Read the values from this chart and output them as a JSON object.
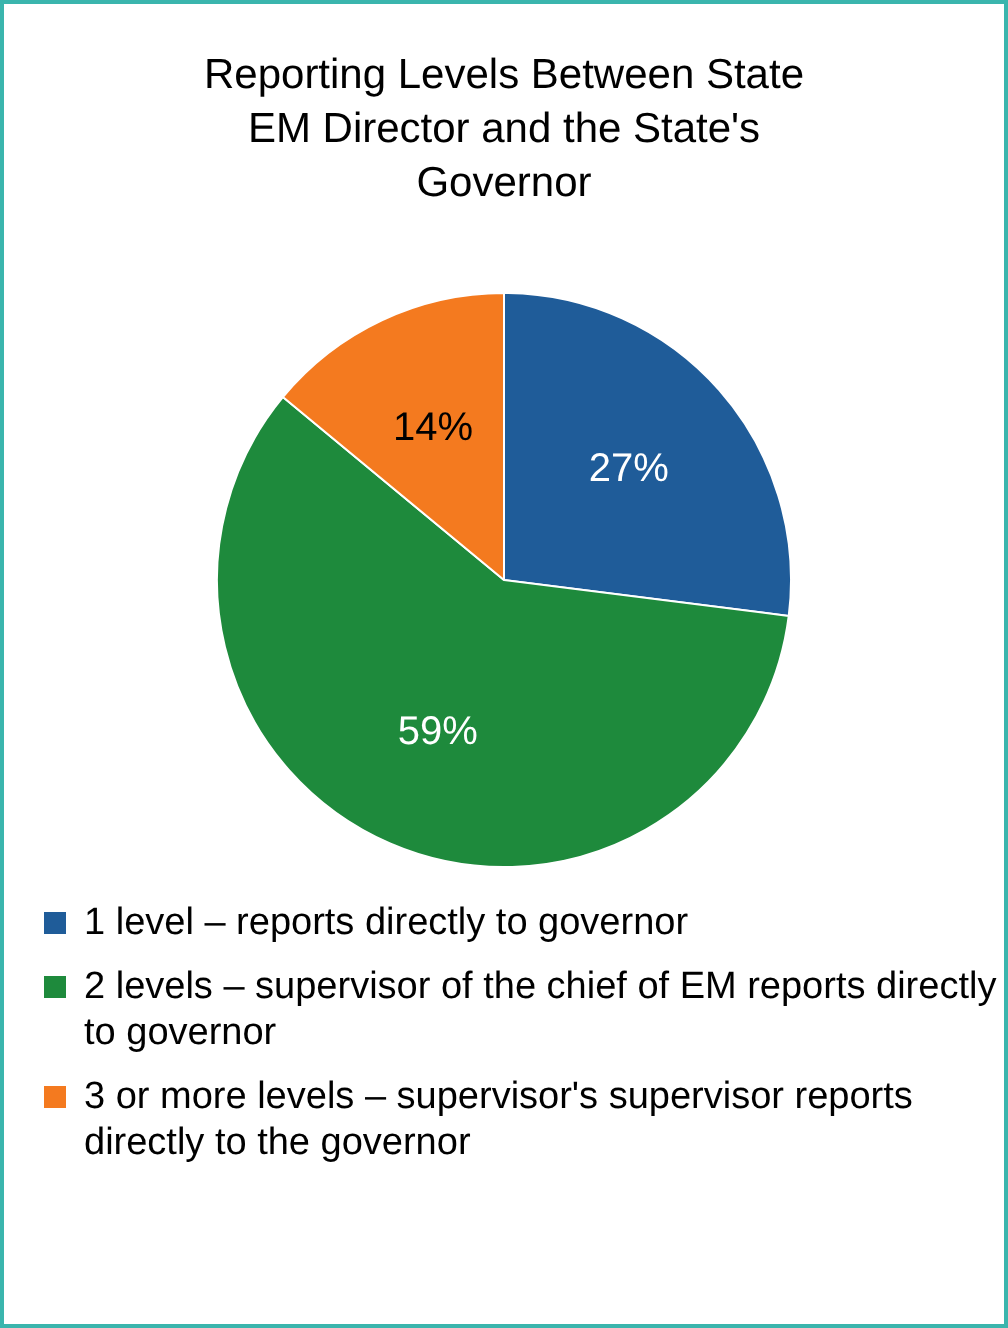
{
  "chart_data": {
    "type": "pie",
    "title": "Reporting Levels Between State EM Director and the State's Governor",
    "categories": [
      "1 level – reports directly to governor",
      "2 levels – supervisor of the chief of EM reports directly to governor",
      "3 or more levels – supervisor's supervisor reports directly to the governor"
    ],
    "values": [
      27,
      59,
      14
    ],
    "colors": [
      "#1f5c99",
      "#1e8a3c",
      "#f47a1f"
    ],
    "value_labels": [
      "27%",
      "59%",
      "14%"
    ],
    "legend": "bottom"
  }
}
